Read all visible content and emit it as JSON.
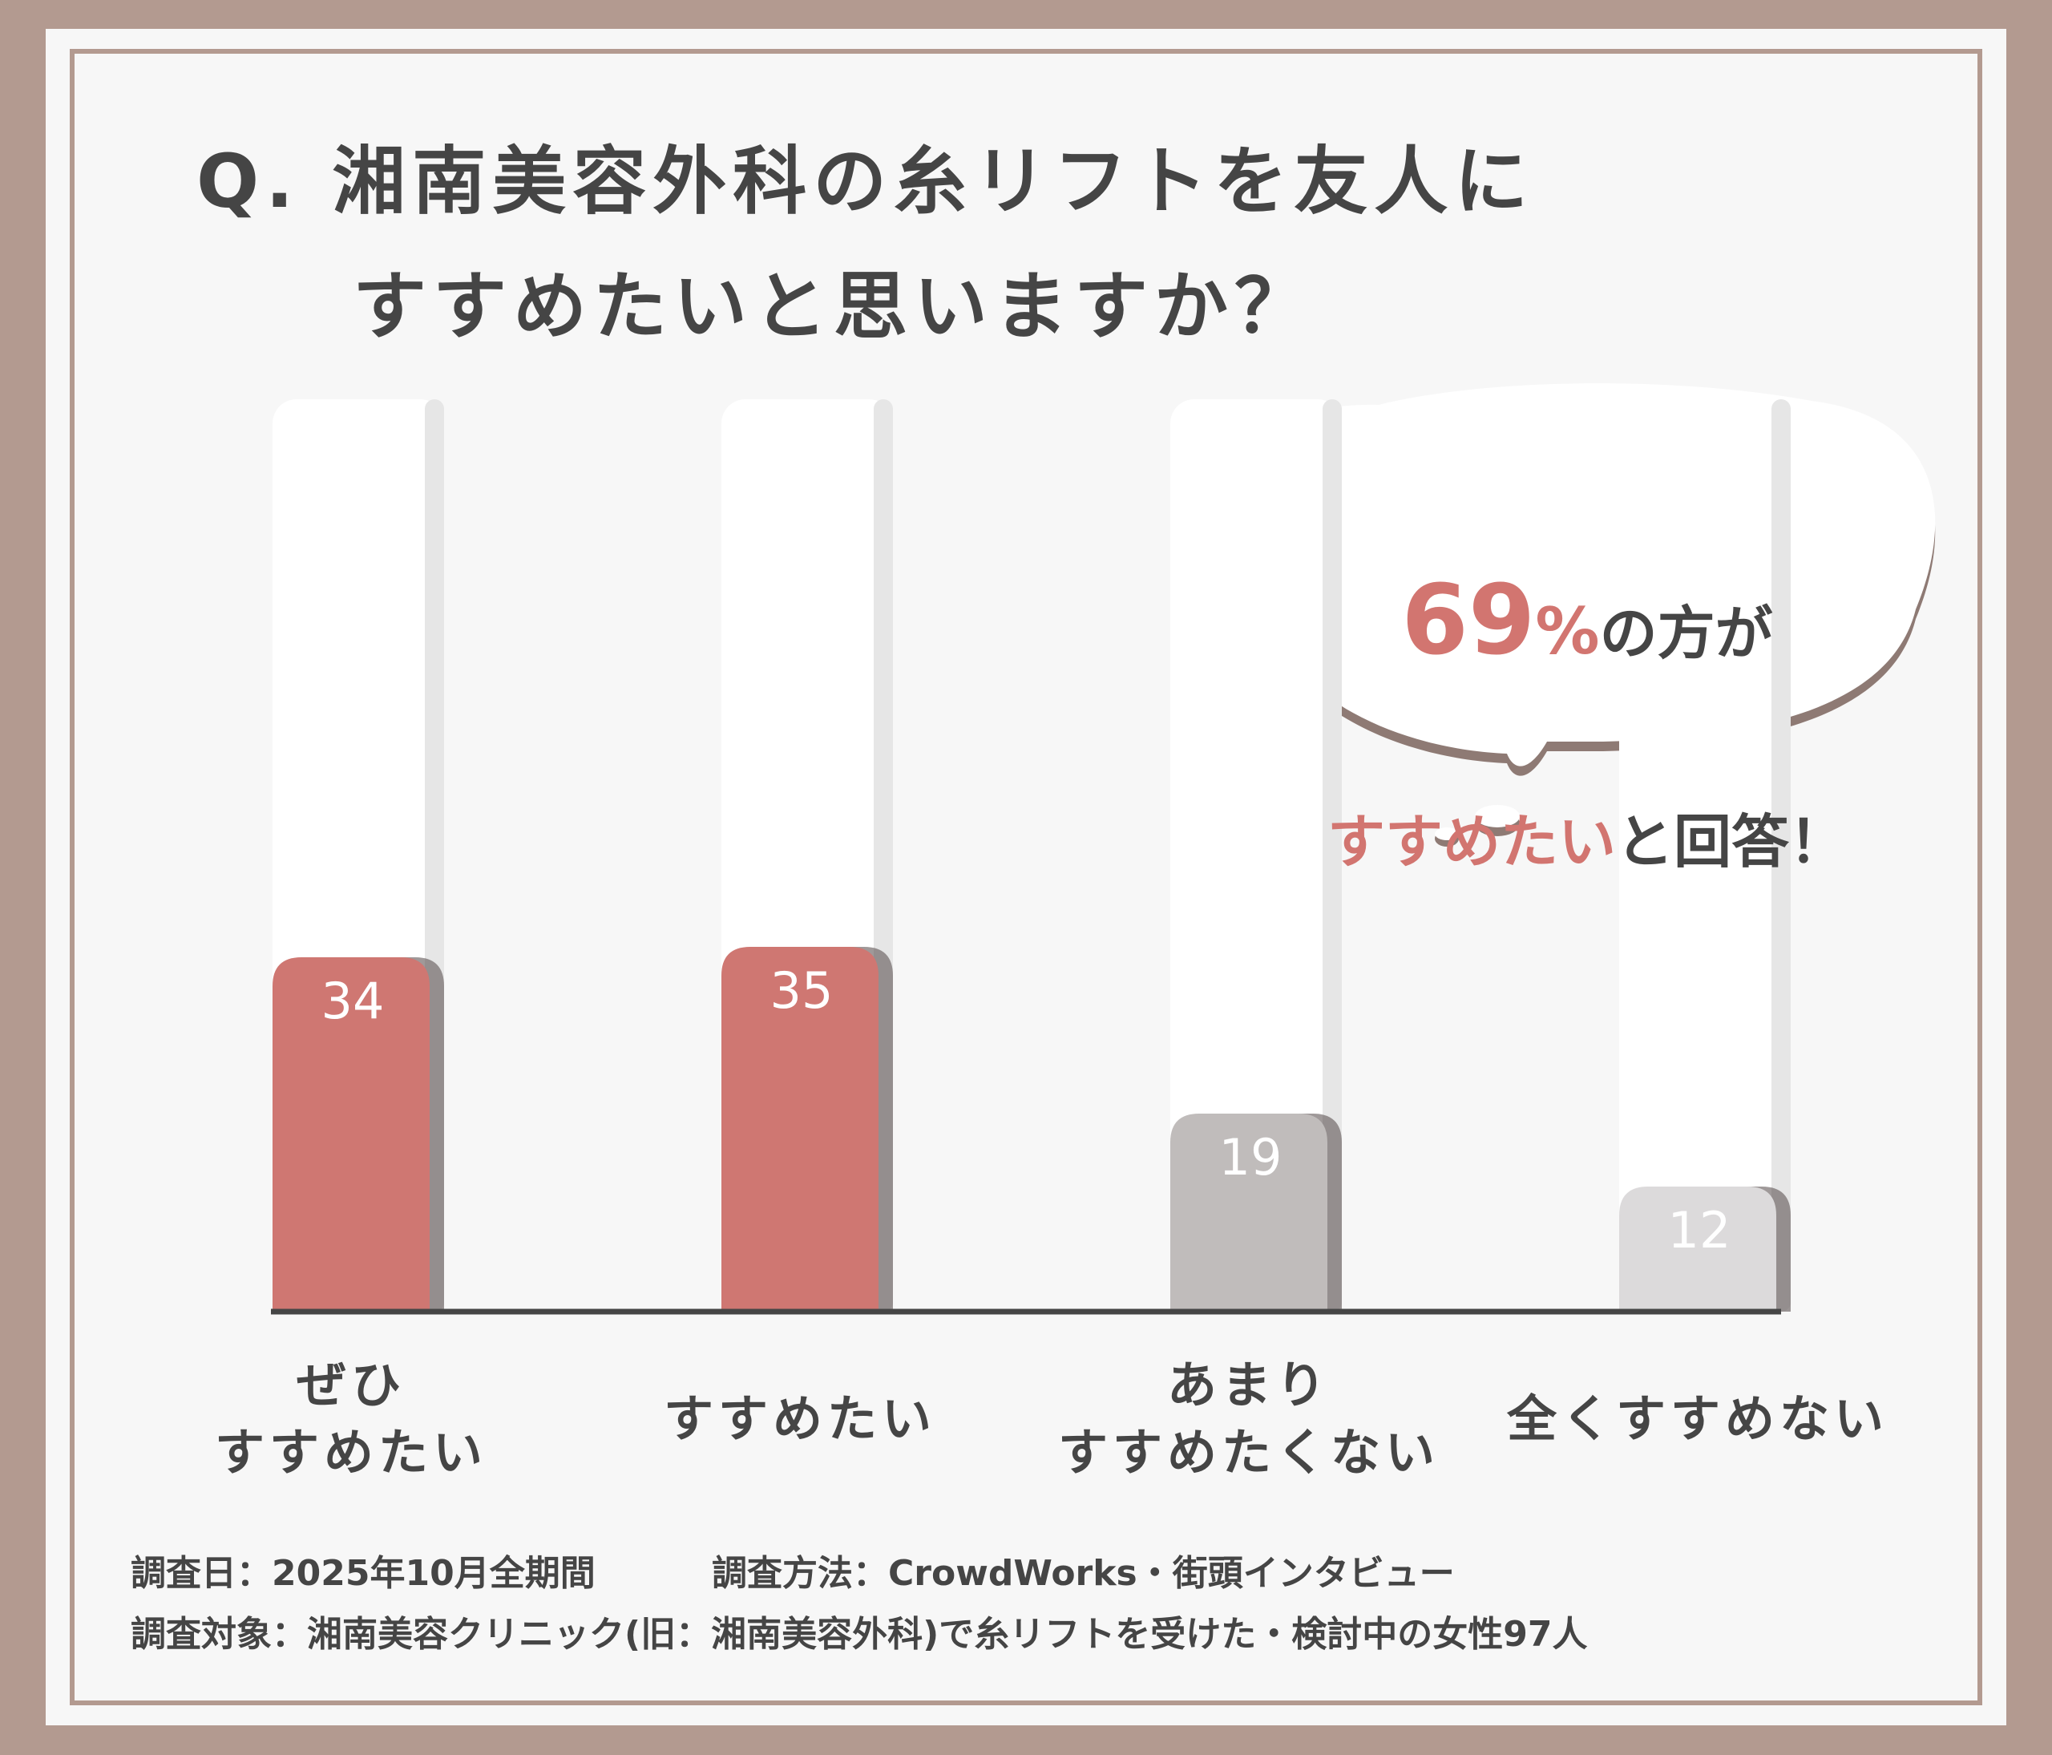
{
  "chart_data": {
    "type": "bar",
    "title": [
      "Q. 湘南美容外科の糸リフトを友人に",
      "すすめたいと思いますか？"
    ],
    "categories": [
      "ぜひ\nすすめたい",
      "すすめたい",
      "あまり\nすすめたくない",
      "全くすすめない"
    ],
    "values": [
      34,
      35,
      19,
      12
    ],
    "colors": [
      "#cf7772",
      "#cf7772",
      "#c0bcbb",
      "#dcdadb"
    ],
    "ylim": [
      0,
      100
    ],
    "callout": {
      "line1": [
        "69",
        "%",
        "の方が"
      ],
      "line2": [
        "すすめたい",
        "と回答！"
      ]
    },
    "footnotes": [
      "調査日：2025年10月全期間",
      "調査方法：CrowdWorks・街頭インタビュー",
      "調査対象：湘南美容クリニック(旧：湘南美容外科)で糸リフトを受けた・検討中の女性97人"
    ]
  }
}
